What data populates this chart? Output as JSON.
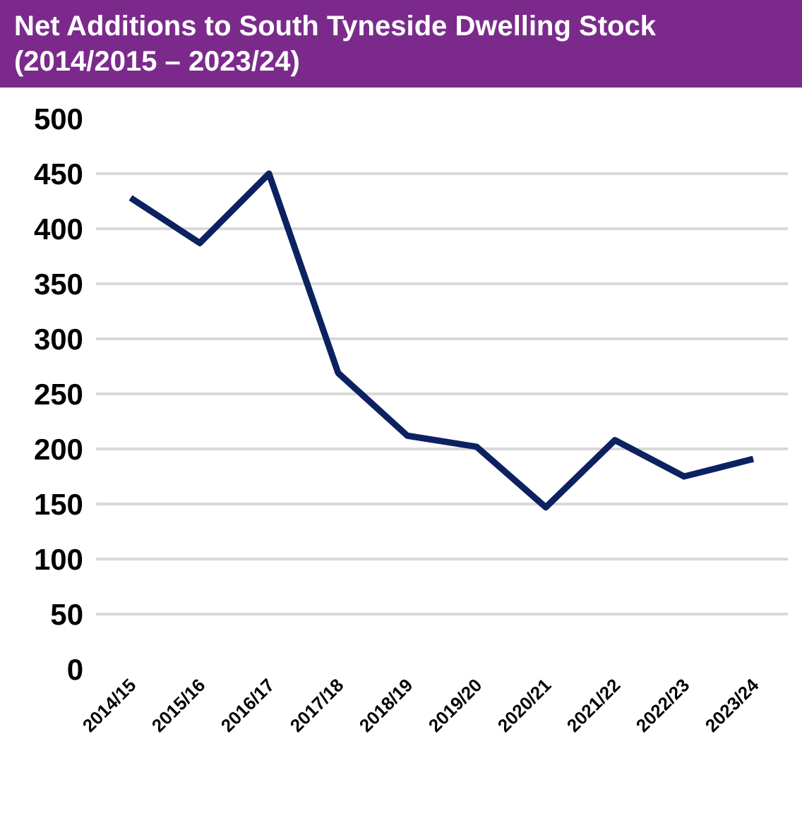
{
  "chart_data": {
    "type": "line",
    "title": "Net Additions to South Tyneside Dwelling Stock (2014/2015 – 2023/24)",
    "categories": [
      "2014/15",
      "2015/16",
      "2016/17",
      "2017/18",
      "2018/19",
      "2019/20",
      "2020/21",
      "2021/22",
      "2022/23",
      "2023/24"
    ],
    "series": [
      {
        "color": "#0c2160",
        "values": [
          428,
          387,
          450,
          269,
          212,
          202,
          147,
          208,
          175,
          191
        ]
      }
    ],
    "ylim": [
      0,
      500
    ],
    "yticks": [
      0,
      50,
      100,
      150,
      200,
      250,
      300,
      350,
      400,
      450,
      500
    ],
    "grid": "y",
    "legend": false,
    "marker": "none",
    "line_style": "solid"
  }
}
